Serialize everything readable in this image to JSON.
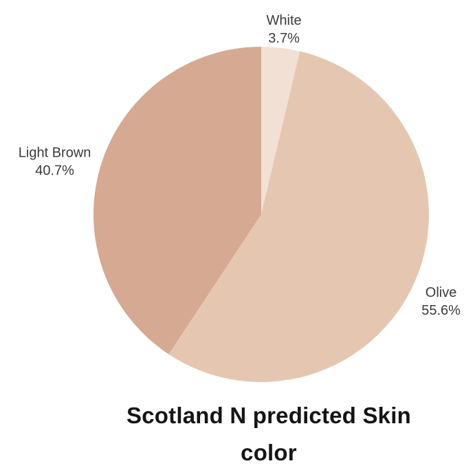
{
  "page": {
    "background": "#ffffff"
  },
  "chart_data": {
    "type": "pie",
    "title": "Scotland N predicted Skin color",
    "title_lines": [
      "Scotland N predicted Skin",
      "color"
    ],
    "slices": [
      {
        "label": "White",
        "value": 3.7,
        "pct_label": "3.7%",
        "color": "#F2E0D5"
      },
      {
        "label": "Olive",
        "value": 55.6,
        "pct_label": "55.6%",
        "color": "#E5C7B1"
      },
      {
        "label": "Light Brown",
        "value": 40.7,
        "pct_label": "40.7%",
        "color": "#D6A993"
      }
    ],
    "start_angle_deg": 0,
    "direction": "clockwise",
    "labels_position": "outside",
    "legend": "none",
    "label_color": "#3B3B3B",
    "title_color": "#151515"
  }
}
